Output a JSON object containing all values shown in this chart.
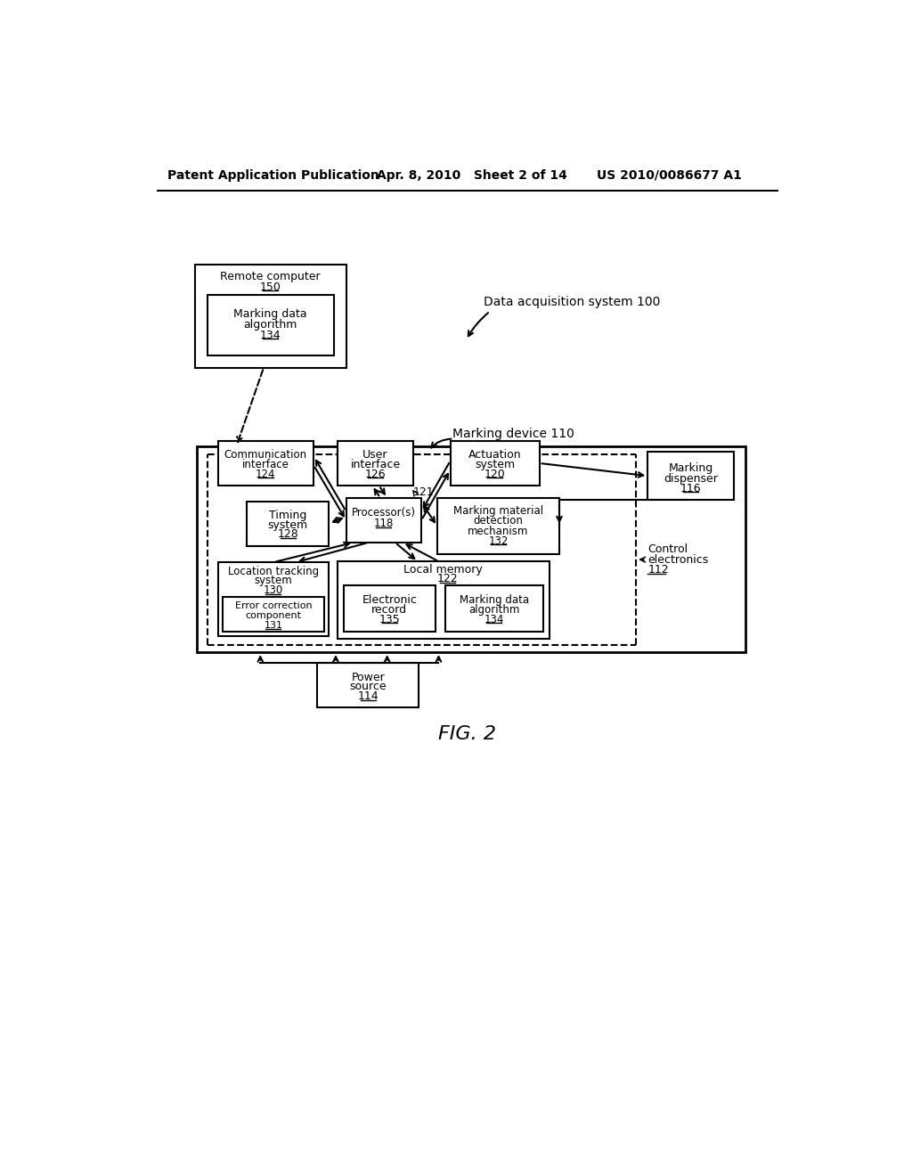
{
  "title": "FIG. 2",
  "header_left": "Patent Application Publication",
  "header_mid": "Apr. 8, 2010   Sheet 2 of 14",
  "header_right": "US 2010/0086677 A1",
  "bg_color": "#ffffff",
  "text_color": "#000000"
}
